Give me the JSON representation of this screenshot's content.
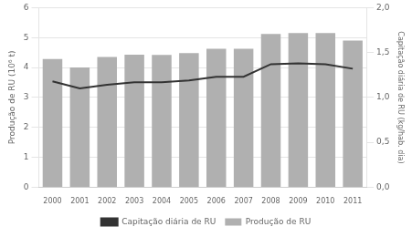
{
  "chart_data": {
    "type": "bar",
    "categories": [
      "2000",
      "2001",
      "2002",
      "2003",
      "2004",
      "2005",
      "2006",
      "2007",
      "2008",
      "2009",
      "2010",
      "2011"
    ],
    "series": [
      {
        "name": "Produção de RU",
        "type": "bar",
        "color": "#b0b0b0",
        "values": [
          4.28,
          4.0,
          4.35,
          4.43,
          4.42,
          4.48,
          4.63,
          4.63,
          5.12,
          5.15,
          5.15,
          4.9
        ]
      },
      {
        "name": "Capitação diária de RU",
        "type": "line",
        "color": "#333333",
        "axis": "y2",
        "values": [
          1.18,
          1.1,
          1.14,
          1.17,
          1.17,
          1.19,
          1.23,
          1.23,
          1.37,
          1.38,
          1.37,
          1.32
        ]
      }
    ],
    "ylabel": "Produção de RU (10⁶ t)",
    "y2label": "Capitação diária de RU (kg/hab. dia)",
    "ylim": [
      0,
      6
    ],
    "yticks": [
      0,
      1,
      2,
      3,
      4,
      5,
      6
    ],
    "y2lim": [
      0.0,
      2.0
    ],
    "y2ticks": [
      {
        "value": 0.0,
        "label": "0,0"
      },
      {
        "value": 0.5,
        "label": "0,5"
      },
      {
        "value": 1.0,
        "label": "1,0"
      },
      {
        "value": 1.5,
        "label": "1,5"
      },
      {
        "value": 2.0,
        "label": "2,0"
      }
    ],
    "grid": true,
    "legend": "bottom"
  }
}
